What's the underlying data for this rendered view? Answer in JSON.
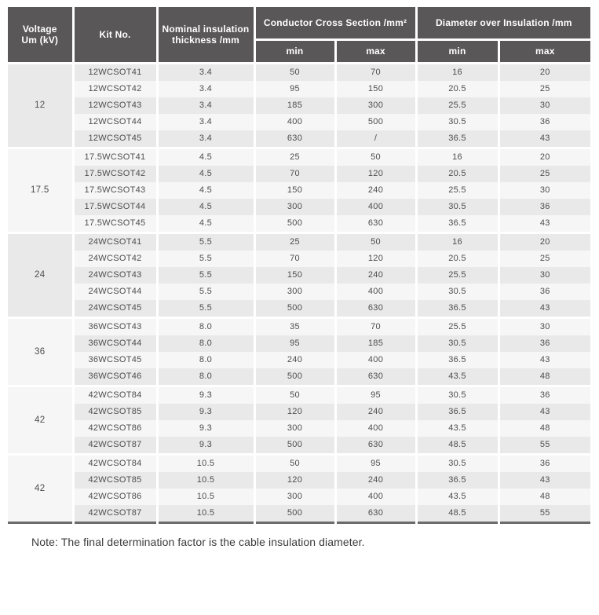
{
  "colors": {
    "header_bg": "#595757",
    "header_text": "#ffffff",
    "row_odd_bg": "#e9e9e9",
    "row_even_bg": "#f6f6f6",
    "voltage_cell_bg": "#ebebeb",
    "cell_text": "#4d4d4d",
    "table_bottom_border": "#6b6b6b",
    "note_text": "#3b3b3b"
  },
  "table": {
    "header": {
      "voltage": "Voltage\nUm (kV)",
      "kit_no": "Kit No.",
      "thickness": "Nominal insulation\nthickness /mm",
      "conductor_cross_section": "Conductor Cross Section /mm²",
      "diameter_over_insulation": "Diameter over Insulation /mm",
      "min": "min",
      "max": "max"
    },
    "columns": [
      "Kit No.",
      "Nominal insulation thickness /mm",
      "Conductor Cross Section min",
      "Conductor Cross Section max",
      "Diameter over Insulation min",
      "Diameter over Insulation max"
    ],
    "groups": [
      {
        "voltage": "12",
        "rows": [
          [
            "12WCSOT41",
            "3.4",
            "50",
            "70",
            "16",
            "20"
          ],
          [
            "12WCSOT42",
            "3.4",
            "95",
            "150",
            "20.5",
            "25"
          ],
          [
            "12WCSOT43",
            "3.4",
            "185",
            "300",
            "25.5",
            "30"
          ],
          [
            "12WCSOT44",
            "3.4",
            "400",
            "500",
            "30.5",
            "36"
          ],
          [
            "12WCSOT45",
            "3.4",
            "630",
            "/",
            "36.5",
            "43"
          ]
        ]
      },
      {
        "voltage": "17.5",
        "rows": [
          [
            "17.5WCSOT41",
            "4.5",
            "25",
            "50",
            "16",
            "20"
          ],
          [
            "17.5WCSOT42",
            "4.5",
            "70",
            "120",
            "20.5",
            "25"
          ],
          [
            "17.5WCSOT43",
            "4.5",
            "150",
            "240",
            "25.5",
            "30"
          ],
          [
            "17.5WCSOT44",
            "4.5",
            "300",
            "400",
            "30.5",
            "36"
          ],
          [
            "17.5WCSOT45",
            "4.5",
            "500",
            "630",
            "36.5",
            "43"
          ]
        ]
      },
      {
        "voltage": "24",
        "rows": [
          [
            "24WCSOT41",
            "5.5",
            "25",
            "50",
            "16",
            "20"
          ],
          [
            "24WCSOT42",
            "5.5",
            "70",
            "120",
            "20.5",
            "25"
          ],
          [
            "24WCSOT43",
            "5.5",
            "150",
            "240",
            "25.5",
            "30"
          ],
          [
            "24WCSOT44",
            "5.5",
            "300",
            "400",
            "30.5",
            "36"
          ],
          [
            "24WCSOT45",
            "5.5",
            "500",
            "630",
            "36.5",
            "43"
          ]
        ]
      },
      {
        "voltage": "36",
        "rows": [
          [
            "36WCSOT43",
            "8.0",
            "35",
            "70",
            "25.5",
            "30"
          ],
          [
            "36WCSOT44",
            "8.0",
            "95",
            "185",
            "30.5",
            "36"
          ],
          [
            "36WCSOT45",
            "8.0",
            "240",
            "400",
            "36.5",
            "43"
          ],
          [
            "36WCSOT46",
            "8.0",
            "500",
            "630",
            "43.5",
            "48"
          ]
        ]
      },
      {
        "voltage": "42",
        "rows": [
          [
            "42WCSOT84",
            "9.3",
            "50",
            "95",
            "30.5",
            "36"
          ],
          [
            "42WCSOT85",
            "9.3",
            "120",
            "240",
            "36.5",
            "43"
          ],
          [
            "42WCSOT86",
            "9.3",
            "300",
            "400",
            "43.5",
            "48"
          ],
          [
            "42WCSOT87",
            "9.3",
            "500",
            "630",
            "48.5",
            "55"
          ]
        ]
      },
      {
        "voltage": "42",
        "rows": [
          [
            "42WCSOT84",
            "10.5",
            "50",
            "95",
            "30.5",
            "36"
          ],
          [
            "42WCSOT85",
            "10.5",
            "120",
            "240",
            "36.5",
            "43"
          ],
          [
            "42WCSOT86",
            "10.5",
            "300",
            "400",
            "43.5",
            "48"
          ],
          [
            "42WCSOT87",
            "10.5",
            "500",
            "630",
            "48.5",
            "55"
          ]
        ]
      }
    ]
  },
  "note": "Note: The final determination factor is the cable insulation diameter."
}
